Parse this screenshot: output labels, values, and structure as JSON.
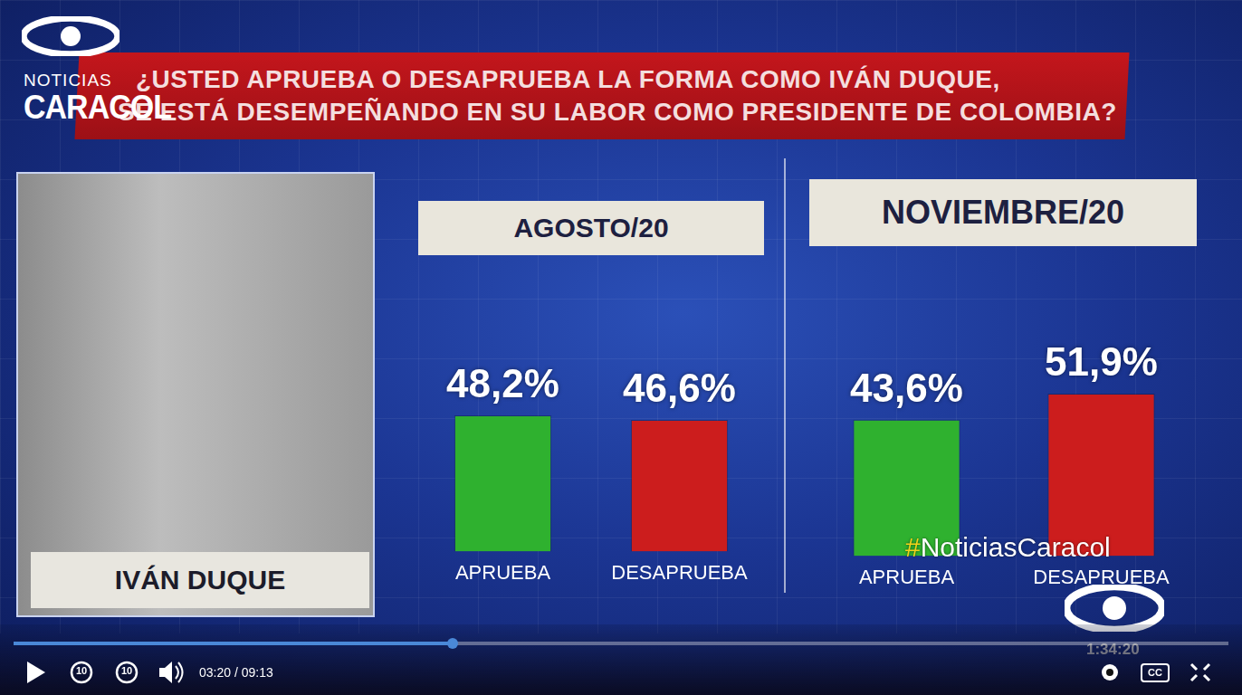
{
  "header": {
    "logo": [
      "NOTICIAS",
      "CARACOL"
    ],
    "question": [
      "¿USTED APRUEBA O DESAPRUEBA LA FORMA COMO IVÁN DUQUE,",
      "SE ESTÁ DESEMPEÑANDO EN SU LABOR COMO PRESIDENTE DE COLOMBIA?"
    ]
  },
  "person": "IVÁN DUQUE",
  "hashtag": "#NoticiasCaracol",
  "player": {
    "time": "03:20 / 09:13",
    "skip": "10",
    "cc": "CC",
    "clock": "1:34:20"
  },
  "chart_data": [
    {
      "type": "bar",
      "title": "AGOSTO/20",
      "categories": [
        "APRUEBA",
        "DESAPRUEBA"
      ],
      "values": [
        48.2,
        46.6
      ],
      "value_labels": [
        "48,2%",
        "46,6%"
      ],
      "colors": [
        "#2fb12f",
        "#cc1d1d"
      ],
      "ylim": [
        0,
        60
      ],
      "data_labels": true,
      "tick_labels": "x",
      "grid": false
    },
    {
      "type": "bar",
      "title": "NOVIEMBRE/20",
      "categories": [
        "APRUEBA",
        "DESAPRUEBA"
      ],
      "values": [
        43.6,
        51.9
      ],
      "value_labels": [
        "43,6%",
        "51,9%"
      ],
      "colors": [
        "#2fb12f",
        "#cc1d1d"
      ],
      "ylim": [
        0,
        60
      ],
      "data_labels": true,
      "tick_labels": "x",
      "grid": false
    }
  ]
}
